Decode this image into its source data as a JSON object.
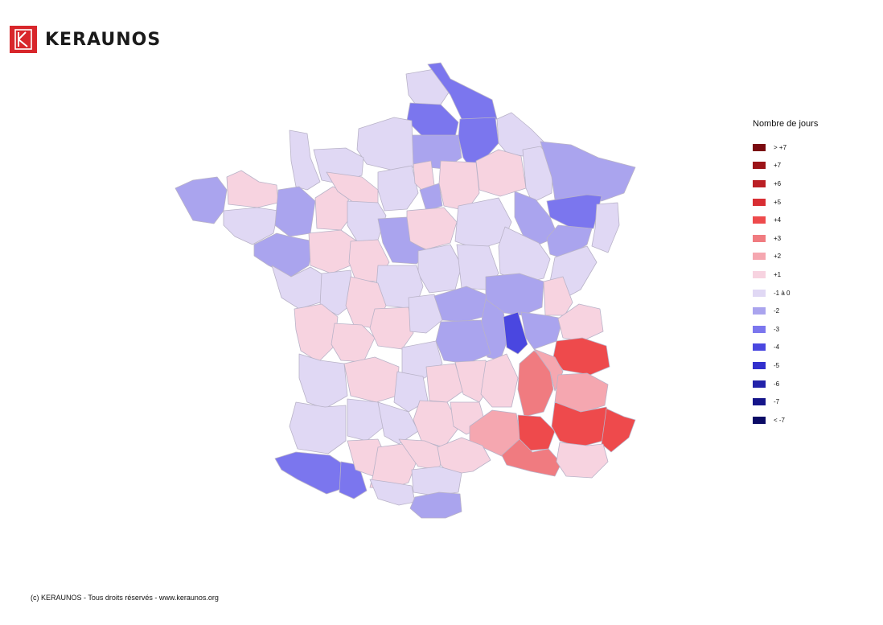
{
  "brand": {
    "name": "KERAUNOS"
  },
  "legend": {
    "title": "Nombre de jours",
    "items": [
      {
        "label": "> +7",
        "color": "#7a0a10"
      },
      {
        "label": "+7",
        "color": "#9c1418"
      },
      {
        "label": "+6",
        "color": "#bb1f25"
      },
      {
        "label": "+5",
        "color": "#d82e33"
      },
      {
        "label": "+4",
        "color": "#ee4a4c"
      },
      {
        "label": "+3",
        "color": "#f07b80"
      },
      {
        "label": "+2",
        "color": "#f5a7b0"
      },
      {
        "label": "+1",
        "color": "#f7d3e0"
      },
      {
        "label": "-1 à 0",
        "color": "#e0d8f4"
      },
      {
        "label": "-2",
        "color": "#aaa4ee"
      },
      {
        "label": "-3",
        "color": "#7b76ee"
      },
      {
        "label": "-4",
        "color": "#4a47e0"
      },
      {
        "label": "-5",
        "color": "#3230cd"
      },
      {
        "label": "-6",
        "color": "#2222aa"
      },
      {
        "label": "-7",
        "color": "#15158a"
      },
      {
        "label": "< -7",
        "color": "#0b0b66"
      }
    ]
  },
  "footer": {
    "text": "(c) KERAUNOS - Tous droits réservés - www.keraunos.org"
  }
}
